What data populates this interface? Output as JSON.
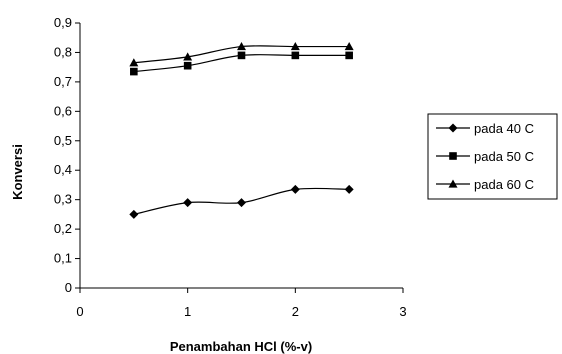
{
  "chart_data": {
    "type": "line",
    "title": "",
    "xlabel": "Penambahan HCl (%-v)",
    "ylabel": "Konversi",
    "xlim": [
      0,
      3
    ],
    "ylim": [
      0,
      0.9
    ],
    "xticks": [
      0,
      1,
      2,
      3
    ],
    "xtick_labels": [
      "0",
      "1",
      "2",
      "3"
    ],
    "yticks": [
      0,
      0.1,
      0.2,
      0.3,
      0.4,
      0.5,
      0.6,
      0.7,
      0.8,
      0.9
    ],
    "ytick_labels": [
      "0",
      "0,1",
      "0,2",
      "0,3",
      "0,4",
      "0,5",
      "0,6",
      "0,7",
      "0,8",
      "0,9"
    ],
    "grid": false,
    "legend_position": "right",
    "x": [
      0.5,
      1,
      1.5,
      2,
      2.5
    ],
    "series": [
      {
        "name": "pada 40 C",
        "marker": "diamond",
        "values": [
          0.25,
          0.29,
          0.29,
          0.335,
          0.335
        ]
      },
      {
        "name": "pada 50 C",
        "marker": "square",
        "values": [
          0.735,
          0.755,
          0.79,
          0.79,
          0.79
        ]
      },
      {
        "name": "pada 60 C",
        "marker": "triangle",
        "values": [
          0.765,
          0.785,
          0.82,
          0.82,
          0.82
        ]
      }
    ],
    "line_color": "#000000"
  }
}
